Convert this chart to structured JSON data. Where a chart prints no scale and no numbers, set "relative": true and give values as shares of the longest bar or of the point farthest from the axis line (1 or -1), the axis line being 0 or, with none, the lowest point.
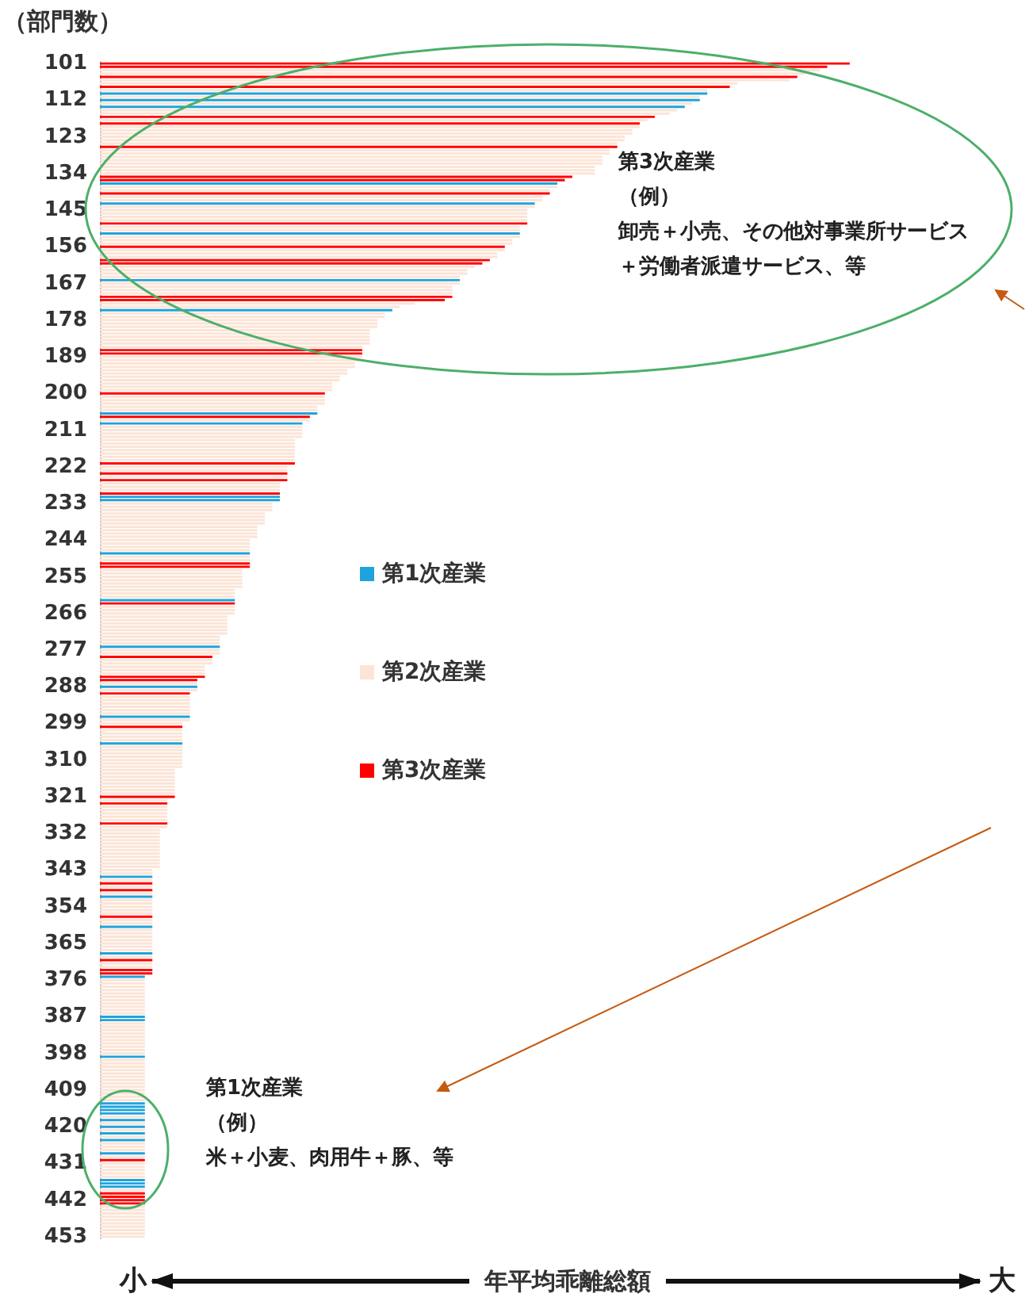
{
  "chart_data": {
    "type": "bar",
    "orientation": "horizontal",
    "relative": true,
    "ylabel": "（部門数）",
    "xlabel": "年平均乖離総額",
    "legend": "center",
    "annotations": [
      "第3次産業",
      "（例）",
      "卸売＋小売、その他対事業所サービス",
      "＋労働者派遣サービス、等",
      "第1次産業",
      "（例）",
      "米＋小麦、肉用牛＋豚、等",
      "小",
      "大"
    ],
    "categories": [
      "101",
      null,
      null,
      null,
      null,
      null,
      null,
      null,
      null,
      null,
      null,
      "112",
      null,
      null,
      null,
      null,
      null,
      null,
      null,
      null,
      null,
      null,
      "123",
      null,
      null,
      null,
      null,
      null,
      null,
      null,
      null,
      null,
      null,
      "134",
      null,
      null,
      null,
      null,
      null,
      null,
      null,
      null,
      null,
      null,
      "145",
      null,
      null,
      null,
      null,
      null,
      null,
      null,
      null,
      null,
      null,
      "156",
      null,
      null,
      null,
      null,
      null,
      null,
      null,
      null,
      null,
      null,
      "167",
      null,
      null,
      null,
      null,
      null,
      null,
      null,
      null,
      null,
      null,
      "178",
      null,
      null,
      null,
      null,
      null,
      null,
      null,
      null,
      null,
      null,
      "189",
      null,
      null,
      null,
      null,
      null,
      null,
      null,
      null,
      null,
      null,
      "200",
      null,
      null,
      null,
      null,
      null,
      null,
      null,
      null,
      null,
      null,
      "211",
      null,
      null,
      null,
      null,
      null,
      null,
      null,
      null,
      null,
      null,
      "222",
      null,
      null,
      null,
      null,
      null,
      null,
      null,
      null,
      null,
      null,
      "233",
      null,
      null,
      null,
      null,
      null,
      null,
      null,
      null,
      null,
      null,
      "244",
      null,
      null,
      null,
      null,
      null,
      null,
      null,
      null,
      null,
      null,
      "255",
      null,
      null,
      null,
      null,
      null,
      null,
      null,
      null,
      null,
      null,
      "266",
      null,
      null,
      null,
      null,
      null,
      null,
      null,
      null,
      null,
      null,
      "277",
      null,
      null,
      null,
      null,
      null,
      null,
      null,
      null,
      null,
      null,
      "288",
      null,
      null,
      null,
      null,
      null,
      null,
      null,
      null,
      null,
      null,
      "299",
      null,
      null,
      null,
      null,
      null,
      null,
      null,
      null,
      null,
      null,
      "310",
      null,
      null,
      null,
      null,
      null,
      null,
      null,
      null,
      null,
      null,
      "321",
      null,
      null,
      null,
      null,
      null,
      null,
      null,
      null,
      null,
      null,
      "332",
      null,
      null,
      null,
      null,
      null,
      null,
      null,
      null,
      null,
      null,
      "343",
      null,
      null,
      null,
      null,
      null,
      null,
      null,
      null,
      null,
      null,
      "354",
      null,
      null,
      null,
      null,
      null,
      null,
      null,
      null,
      null,
      null,
      "365",
      null,
      null,
      null,
      null,
      null,
      null,
      null,
      null,
      null,
      null,
      "376",
      null,
      null,
      null,
      null,
      null,
      null,
      null,
      null,
      null,
      null,
      "387",
      null,
      null,
      null,
      null,
      null,
      null,
      null,
      null,
      null,
      null,
      "398",
      null,
      null,
      null,
      null,
      null,
      null,
      null,
      null,
      null,
      null,
      "409",
      null,
      null,
      null,
      null,
      null,
      null,
      null,
      null,
      null,
      null,
      "420",
      null,
      null,
      null,
      null,
      null,
      null,
      null,
      null,
      null,
      null,
      "431",
      null,
      null,
      null,
      null,
      null,
      null,
      null,
      null,
      null,
      null,
      "442",
      null,
      null,
      null,
      null,
      null,
      null,
      null,
      null,
      null,
      null,
      "453"
    ],
    "series": [
      {
        "name": "第1次産業",
        "color": "#1fa3dc",
        "values": [
          null,
          null,
          null,
          null,
          null,
          null,
          null,
          null,
          null,
          0.81,
          null,
          0.8,
          null,
          0.78,
          null,
          null,
          null,
          null,
          null,
          null,
          null,
          null,
          null,
          null,
          null,
          null,
          null,
          null,
          null,
          null,
          null,
          null,
          null,
          null,
          null,
          null,
          0.61,
          null,
          null,
          null,
          null,
          null,
          0.58,
          null,
          null,
          null,
          null,
          null,
          null,
          null,
          null,
          0.56,
          null,
          null,
          null,
          null,
          null,
          null,
          null,
          null,
          null,
          null,
          null,
          null,
          null,
          0.48,
          null,
          null,
          null,
          null,
          null,
          null,
          null,
          null,
          0.39,
          null,
          null,
          null,
          null,
          null,
          null,
          null,
          null,
          null,
          null,
          null,
          null,
          null,
          null,
          null,
          null,
          null,
          null,
          null,
          null,
          null,
          null,
          null,
          null,
          null,
          null,
          null,
          null,
          null,
          null,
          0.29,
          null,
          null,
          0.27,
          null,
          null,
          null,
          null,
          null,
          null,
          null,
          null,
          null,
          null,
          null,
          null,
          null,
          null,
          null,
          null,
          null,
          null,
          null,
          null,
          null,
          0.24,
          0.24,
          null,
          null,
          null,
          null,
          null,
          null,
          null,
          null,
          null,
          null,
          null,
          null,
          null,
          null,
          null,
          0.2,
          null,
          null,
          null,
          null,
          null,
          null,
          null,
          null,
          null,
          null,
          null,
          null,
          null,
          0.18,
          null,
          null,
          null,
          null,
          null,
          null,
          null,
          null,
          null,
          null,
          null,
          null,
          null,
          0.16,
          null,
          null,
          null,
          null,
          null,
          null,
          null,
          null,
          null,
          null,
          null,
          0.13,
          null,
          null,
          null,
          null,
          null,
          null,
          null,
          null,
          0.12,
          null,
          null,
          null,
          null,
          null,
          null,
          null,
          0.11,
          null,
          null,
          null,
          null,
          null,
          null,
          null,
          null,
          null,
          null,
          null,
          null,
          null,
          null,
          null,
          null,
          null,
          null,
          null,
          null,
          null,
          null,
          null,
          null,
          null,
          null,
          null,
          null,
          null,
          null,
          null,
          null,
          null,
          null,
          null,
          null,
          null,
          null,
          null,
          0.07,
          null,
          null,
          null,
          null,
          null,
          0.07,
          null,
          null,
          null,
          null,
          null,
          null,
          null,
          null,
          0.07,
          null,
          null,
          null,
          null,
          null,
          null,
          null,
          0.07,
          null,
          null,
          null,
          null,
          null,
          null,
          0.06,
          null,
          null,
          null,
          null,
          null,
          null,
          null,
          null,
          null,
          null,
          null,
          0.06,
          0.06,
          null,
          null,
          null,
          null,
          null,
          null,
          null,
          null,
          null,
          null,
          0.06,
          null,
          null,
          null,
          null,
          null,
          null,
          null,
          null,
          null,
          null,
          null,
          null,
          null,
          0.06,
          0.06,
          0.06,
          0.06,
          null,
          0.06,
          null,
          0.06,
          null,
          0.06,
          null,
          0.06,
          null,
          null,
          null,
          0.06,
          null,
          null,
          null,
          null,
          null,
          null,
          null,
          0.06,
          0.06,
          0.06,
          null,
          null,
          null,
          null,
          null,
          null,
          null,
          null,
          null,
          null,
          null,
          null,
          null,
          null,
          null
        ]
      },
      {
        "name": "第2次産業",
        "color": "#fce4d6",
        "values": [
          null,
          null,
          0.96,
          0.94,
          null,
          0.92,
          0.85,
          null,
          0.81,
          null,
          0.8,
          null,
          0.79,
          null,
          0.77,
          0.76,
          null,
          0.73,
          null,
          0.72,
          0.71,
          0.71,
          0.7,
          0.7,
          0.69,
          null,
          0.68,
          0.68,
          0.67,
          0.67,
          0.67,
          0.66,
          0.66,
          0.66,
          null,
          null,
          null,
          0.61,
          0.6,
          null,
          0.59,
          0.59,
          null,
          0.58,
          0.57,
          0.57,
          0.57,
          0.57,
          null,
          0.56,
          0.56,
          null,
          0.56,
          0.55,
          0.55,
          null,
          0.54,
          0.53,
          0.53,
          null,
          null,
          0.5,
          0.49,
          0.49,
          0.48,
          null,
          0.48,
          0.47,
          0.47,
          0.47,
          null,
          null,
          0.42,
          0.4,
          null,
          0.38,
          0.38,
          0.37,
          0.37,
          0.37,
          0.36,
          0.36,
          0.36,
          0.36,
          0.36,
          0.35,
          null,
          null,
          0.35,
          0.35,
          0.34,
          0.34,
          0.33,
          0.33,
          0.32,
          0.32,
          0.31,
          0.31,
          0.31,
          null,
          0.3,
          0.3,
          0.3,
          0.29,
          0.29,
          null,
          null,
          0.28,
          null,
          0.27,
          0.27,
          0.27,
          0.27,
          0.26,
          0.26,
          0.26,
          0.26,
          0.26,
          0.26,
          0.26,
          null,
          0.25,
          0.25,
          null,
          0.25,
          null,
          0.24,
          0.24,
          0.24,
          null,
          null,
          null,
          0.23,
          0.23,
          0.23,
          0.22,
          0.22,
          0.22,
          0.22,
          0.21,
          0.21,
          0.21,
          0.21,
          0.2,
          0.2,
          0.2,
          0.2,
          null,
          0.2,
          0.2,
          null,
          null,
          0.19,
          0.19,
          0.19,
          0.19,
          0.19,
          0.19,
          0.18,
          0.18,
          0.18,
          null,
          null,
          0.18,
          0.18,
          0.18,
          0.17,
          0.17,
          0.17,
          0.17,
          0.17,
          0.17,
          0.16,
          0.16,
          0.16,
          null,
          0.16,
          0.16,
          null,
          0.15,
          0.15,
          0.14,
          0.14,
          0.14,
          null,
          null,
          0.13,
          null,
          0.13,
          null,
          0.12,
          0.12,
          0.12,
          0.12,
          0.12,
          0.12,
          null,
          0.12,
          0.11,
          null,
          0.11,
          0.11,
          0.11,
          0.11,
          null,
          0.11,
          0.11,
          0.11,
          0.11,
          0.11,
          0.11,
          0.11,
          0.1,
          0.1,
          0.1,
          0.1,
          0.1,
          0.1,
          0.1,
          0.1,
          null,
          0.09,
          null,
          0.09,
          0.09,
          0.09,
          0.09,
          0.09,
          null,
          0.09,
          0.08,
          0.08,
          0.08,
          0.08,
          0.08,
          0.08,
          0.08,
          0.08,
          0.08,
          0.08,
          0.08,
          0.08,
          0.07,
          0.07,
          null,
          0.07,
          null,
          0.07,
          null,
          0.07,
          null,
          0.07,
          0.07,
          0.07,
          0.07,
          0.07,
          null,
          0.07,
          0.07,
          null,
          0.07,
          0.07,
          0.07,
          0.07,
          0.07,
          0.07,
          0.07,
          null,
          0.07,
          null,
          0.07,
          0.07,
          null,
          null,
          null,
          0.06,
          0.06,
          0.06,
          0.06,
          0.06,
          0.06,
          0.06,
          0.06,
          0.06,
          0.06,
          0.06,
          null,
          null,
          0.06,
          0.06,
          0.06,
          0.06,
          0.06,
          0.06,
          0.06,
          0.06,
          0.06,
          0.06,
          null,
          0.06,
          0.06,
          0.06,
          0.06,
          0.06,
          0.06,
          0.06,
          0.06,
          0.06,
          0.06,
          0.06,
          0.06,
          0.06,
          null,
          null,
          null,
          null,
          0.06,
          null,
          0.06,
          null,
          0.06,
          null,
          0.06,
          null,
          0.06,
          0.06,
          0.06,
          null,
          0.06,
          null,
          0.06,
          0.06,
          0.06,
          0.06,
          0.06,
          null,
          null,
          null,
          0.06,
          null,
          null,
          null,
          null,
          0.06,
          0.06,
          0.06,
          0.06,
          0.06,
          0.06,
          0.06,
          0.06,
          0.06,
          0.06
        ]
      },
      {
        "name": "第3次産業",
        "color": "#ff0000",
        "values": [
          1.0,
          0.97,
          null,
          null,
          0.93,
          null,
          null,
          0.84,
          null,
          null,
          null,
          null,
          null,
          null,
          null,
          null,
          0.74,
          null,
          0.72,
          null,
          null,
          null,
          null,
          null,
          null,
          0.69,
          null,
          null,
          null,
          null,
          null,
          null,
          null,
          null,
          0.63,
          0.62,
          null,
          null,
          null,
          0.6,
          null,
          null,
          null,
          null,
          null,
          null,
          null,
          null,
          0.57,
          null,
          null,
          null,
          null,
          null,
          null,
          0.54,
          null,
          null,
          null,
          0.52,
          0.51,
          null,
          null,
          null,
          null,
          null,
          null,
          null,
          null,
          null,
          0.47,
          0.46,
          null,
          null,
          null,
          null,
          null,
          null,
          null,
          null,
          null,
          null,
          null,
          null,
          null,
          null,
          0.35,
          0.35,
          null,
          null,
          null,
          null,
          null,
          null,
          null,
          null,
          null,
          null,
          null,
          0.3,
          null,
          null,
          null,
          null,
          null,
          null,
          0.28,
          null,
          null,
          null,
          null,
          null,
          null,
          null,
          null,
          null,
          null,
          null,
          null,
          null,
          0.26,
          null,
          null,
          0.25,
          null,
          0.25,
          null,
          null,
          null,
          0.24,
          null,
          null,
          null,
          null,
          null,
          null,
          null,
          null,
          null,
          null,
          null,
          null,
          null,
          null,
          null,
          null,
          null,
          null,
          null,
          null,
          0.2,
          0.2,
          null,
          null,
          null,
          null,
          null,
          null,
          null,
          null,
          null,
          null,
          0.18,
          null,
          null,
          null,
          null,
          null,
          null,
          null,
          null,
          null,
          null,
          null,
          null,
          null,
          null,
          null,
          0.15,
          null,
          null,
          null,
          null,
          null,
          0.14,
          0.13,
          null,
          null,
          null,
          0.12,
          null,
          null,
          null,
          null,
          null,
          null,
          null,
          null,
          null,
          0.11,
          null,
          null,
          null,
          null,
          null,
          null,
          null,
          null,
          null,
          null,
          null,
          null,
          null,
          null,
          null,
          null,
          null,
          null,
          null,
          null,
          0.1,
          null,
          0.09,
          null,
          null,
          null,
          null,
          null,
          0.09,
          null,
          null,
          null,
          null,
          null,
          null,
          null,
          null,
          null,
          null,
          null,
          null,
          null,
          null,
          null,
          null,
          null,
          0.07,
          null,
          0.07,
          null,
          null,
          null,
          null,
          null,
          null,
          null,
          0.07,
          null,
          null,
          null,
          null,
          null,
          null,
          null,
          null,
          null,
          null,
          null,
          null,
          0.07,
          null,
          null,
          0.07,
          0.07,
          null,
          null,
          null,
          null,
          null,
          null,
          null,
          null,
          null,
          null,
          null,
          null,
          null,
          null,
          null,
          null,
          null,
          null,
          null,
          null,
          null,
          null,
          null,
          null,
          null,
          null,
          null,
          null,
          null,
          null,
          null,
          null,
          null,
          null,
          null,
          null,
          null,
          null,
          null,
          null,
          null,
          null,
          null,
          null,
          null,
          null,
          null,
          null,
          null,
          null,
          null,
          null,
          null,
          null,
          null,
          0.06,
          null,
          null,
          null,
          null,
          null,
          null,
          null,
          null,
          null,
          0.06,
          0.06,
          0.06,
          0.06,
          null,
          null,
          null,
          null,
          null,
          null,
          null,
          null,
          null,
          null
        ]
      }
    ]
  }
}
